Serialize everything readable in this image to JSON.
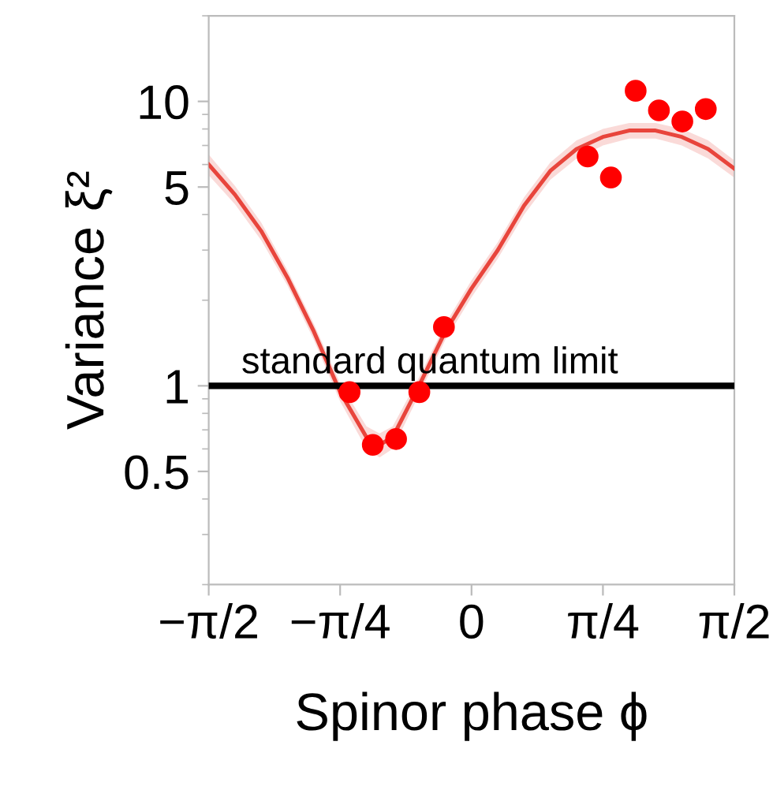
{
  "chart_data": {
    "type": "scatter",
    "xlabel": "Spinor phase ϕ",
    "ylabel": "Variance ξ²",
    "log": "y",
    "xlim": [
      -1.5708,
      1.5708
    ],
    "ylim": [
      0.2,
      20
    ],
    "xticks": [
      {
        "value": -1.5708,
        "label": "−π/2"
      },
      {
        "value": -0.7854,
        "label": "−π/4"
      },
      0,
      {
        "value": 0.7854,
        "label": "π/4"
      },
      {
        "value": 1.5708,
        "label": "π/2"
      }
    ],
    "yticks": [
      0.5,
      1,
      5,
      10
    ],
    "grid": false,
    "series": [
      {
        "type": "line",
        "marker": "none",
        "color": "#e8453c",
        "x": [
          -1.5708,
          -1.414,
          -1.257,
          -1.1,
          -0.942,
          -0.785,
          -0.628,
          -0.55,
          -0.471,
          -0.314,
          -0.157,
          0,
          0.157,
          0.314,
          0.471,
          0.628,
          0.785,
          0.942,
          1.1,
          1.257,
          1.414,
          1.5708
        ],
        "values": [
          6.0,
          4.7,
          3.5,
          2.4,
          1.55,
          0.95,
          0.66,
          0.62,
          0.66,
          1.0,
          1.55,
          2.2,
          3.0,
          4.3,
          5.7,
          6.8,
          7.5,
          7.9,
          7.9,
          7.5,
          6.8,
          5.8
        ],
        "lower": [
          5.5,
          4.35,
          3.25,
          2.25,
          1.45,
          0.88,
          0.6,
          0.56,
          0.6,
          0.93,
          1.45,
          2.05,
          2.8,
          4.0,
          5.3,
          6.3,
          7.0,
          7.4,
          7.4,
          7.0,
          6.3,
          5.4
        ],
        "upper": [
          6.5,
          5.05,
          3.75,
          2.55,
          1.65,
          1.02,
          0.72,
          0.68,
          0.72,
          1.07,
          1.65,
          2.35,
          3.2,
          4.6,
          6.1,
          7.3,
          8.0,
          8.4,
          8.4,
          8.0,
          7.3,
          6.2
        ]
      },
      {
        "marker": "circle",
        "color": "#ff0000",
        "x": [
          -0.729,
          -0.59,
          -0.451,
          -0.312,
          -0.165,
          0.694,
          0.833,
          0.981,
          1.12,
          1.26,
          1.4
        ],
        "values": [
          0.95,
          0.62,
          0.65,
          0.95,
          1.61,
          6.4,
          5.4,
          10.9,
          9.3,
          8.5,
          9.4
        ]
      }
    ],
    "ref_lines": [
      {
        "axis": "y",
        "value": 1,
        "label": "standard quantum limit",
        "color": "#000000"
      }
    ]
  }
}
